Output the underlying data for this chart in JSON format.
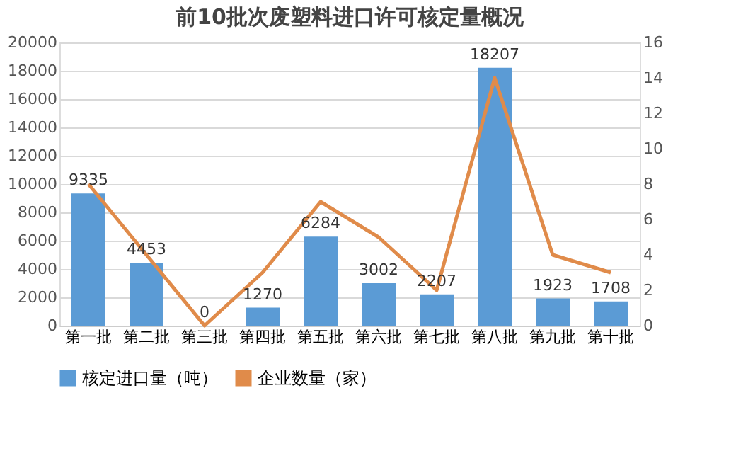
{
  "chart_data": {
    "type": "bar",
    "title": "前10批次废塑料进口许可核定量概况",
    "categories": [
      "第一批",
      "第二批",
      "第三批",
      "第四批",
      "第五批",
      "第六批",
      "第七批",
      "第八批",
      "第九批",
      "第十批"
    ],
    "series": [
      {
        "name": "核定进口量（吨）",
        "color": "#5b9bd5",
        "values": [
          9335,
          4453,
          0,
          1270,
          6284,
          3002,
          2207,
          18207,
          1923,
          1708
        ],
        "value_labels": [
          "9335",
          "4453",
          "0",
          "1270",
          "6284",
          "3002",
          "2207",
          "18207",
          "1923",
          "1708"
        ]
      },
      {
        "name": "企业数量（家）",
        "type": "line",
        "axis": "y2",
        "color": "#e08b4a",
        "values": [
          8,
          4,
          0,
          3,
          7,
          5,
          2,
          14,
          4,
          3
        ]
      }
    ],
    "ylim": [
      0,
      20000
    ],
    "yticks": [
      0,
      2000,
      4000,
      6000,
      8000,
      10000,
      12000,
      14000,
      16000,
      18000,
      20000
    ],
    "y2lim": [
      0,
      16
    ],
    "y2ticks": [
      0,
      2,
      4,
      6,
      8,
      10,
      12,
      14,
      16
    ],
    "grid": "y",
    "legend": "bottom"
  }
}
